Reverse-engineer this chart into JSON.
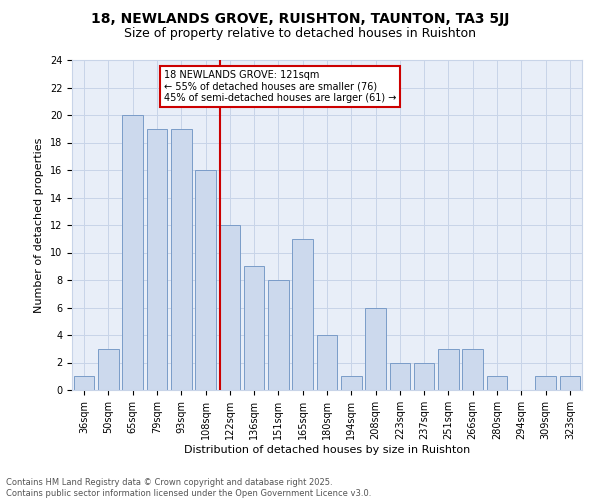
{
  "title": "18, NEWLANDS GROVE, RUISHTON, TAUNTON, TA3 5JJ",
  "subtitle": "Size of property relative to detached houses in Ruishton",
  "xlabel": "Distribution of detached houses by size in Ruishton",
  "ylabel": "Number of detached properties",
  "categories": [
    "36sqm",
    "50sqm",
    "65sqm",
    "79sqm",
    "93sqm",
    "108sqm",
    "122sqm",
    "136sqm",
    "151sqm",
    "165sqm",
    "180sqm",
    "194sqm",
    "208sqm",
    "223sqm",
    "237sqm",
    "251sqm",
    "266sqm",
    "280sqm",
    "294sqm",
    "309sqm",
    "323sqm"
  ],
  "values": [
    1,
    3,
    20,
    19,
    19,
    16,
    12,
    9,
    8,
    11,
    4,
    1,
    6,
    2,
    2,
    3,
    3,
    1,
    0,
    1,
    1
  ],
  "bar_color": "#ccd9ed",
  "bar_edge_color": "#7a9cc8",
  "highlight_line_color": "#cc0000",
  "highlight_box_color": "#cc0000",
  "highlight_index": 6,
  "annotation_line1": "18 NEWLANDS GROVE: 121sqm",
  "annotation_line2": "← 55% of detached houses are smaller (76)",
  "annotation_line3": "45% of semi-detached houses are larger (61) →",
  "footer_text": "Contains HM Land Registry data © Crown copyright and database right 2025.\nContains public sector information licensed under the Open Government Licence v3.0.",
  "ylim": [
    0,
    24
  ],
  "yticks": [
    0,
    2,
    4,
    6,
    8,
    10,
    12,
    14,
    16,
    18,
    20,
    22,
    24
  ],
  "grid_color": "#c8d4e8",
  "bg_color": "#e8eef8",
  "title_fontsize": 10,
  "subtitle_fontsize": 9,
  "axis_label_fontsize": 8,
  "tick_fontsize": 7,
  "annotation_fontsize": 7,
  "footer_fontsize": 6
}
